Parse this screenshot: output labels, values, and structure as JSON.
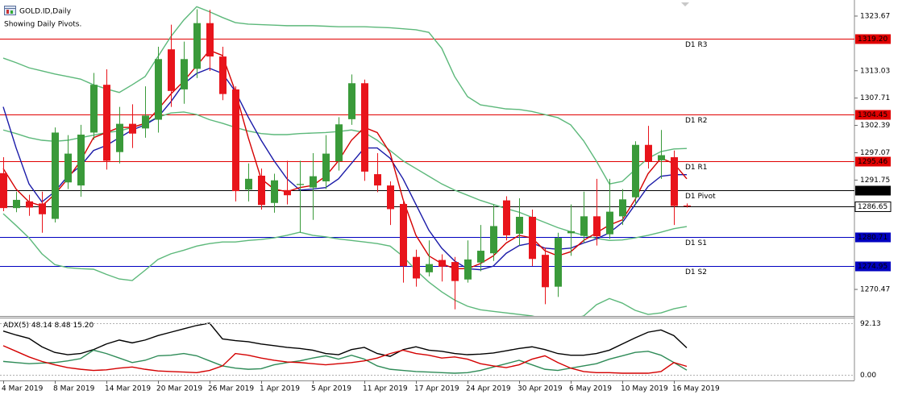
{
  "chart_data": {
    "type": "candlestick",
    "title": "GOLD.ID,Daily",
    "subtitle": "Showing Daily Pivots.",
    "categories": [
      "4 Mar 2019",
      null,
      null,
      null,
      "8 Mar 2019",
      null,
      null,
      null,
      "14 Mar 2019",
      null,
      null,
      null,
      "20 Mar 2019",
      null,
      null,
      null,
      "26 Mar 2019",
      null,
      null,
      null,
      "1 Apr 2019",
      null,
      null,
      null,
      "5 Apr 2019",
      null,
      null,
      null,
      "11 Apr 2019",
      null,
      null,
      null,
      "17 Apr 2019",
      null,
      null,
      null,
      "24 Apr 2019",
      null,
      null,
      null,
      "30 Apr 2019",
      null,
      null,
      null,
      "6 May 2019",
      null,
      null,
      null,
      "10 May 2019",
      null,
      null,
      null,
      "16 May 2019",
      null
    ],
    "open": [
      1293.1,
      1286.3,
      1287.6,
      1287.2,
      1284.2,
      1291.3,
      1290.7,
      1301.0,
      1310.3,
      1297.2,
      1302.7,
      1301.8,
      1303.5,
      1317.2,
      1309.4,
      1313.4,
      1322.3,
      1315.8,
      1309.4,
      1289.9,
      1292.6,
      1287.3,
      1289.8,
      1290.8,
      1290.3,
      1291.5,
      1295.4,
      1303.6,
      1310.6,
      1292.9,
      1290.7,
      1287.1,
      1276.8,
      1273.8,
      1276.2,
      1275.8,
      1272.4,
      1275.7,
      1277.5,
      1287.8,
      1281.3,
      1284.6,
      1277.2,
      1271.0,
      1281.4,
      1280.9,
      1284.7,
      1281.2,
      1284.7,
      1288.4,
      1298.6,
      1295.6,
      1296.2,
      1286.8
    ],
    "high": [
      1296.2,
      1289.5,
      1288.9,
      1289.5,
      1302.0,
      1300.5,
      1302.5,
      1312.6,
      1313.3,
      1306.0,
      1306.5,
      1310.0,
      1317.7,
      1322.0,
      1318.7,
      1325.0,
      1324.9,
      1317.7,
      1310.0,
      1295.0,
      1294.0,
      1293.0,
      1295.5,
      1295.5,
      1297.0,
      1300.5,
      1304.0,
      1312.3,
      1311.3,
      1297.0,
      1291.5,
      1288.0,
      1278.2,
      1280.0,
      1277.3,
      1276.8,
      1280.0,
      1283.0,
      1287.0,
      1288.6,
      1288.2,
      1286.0,
      1278.6,
      1281.5,
      1287.0,
      1289.5,
      1292.0,
      1292.0,
      1290.0,
      1299.3,
      1302.3,
      1301.5,
      1297.5,
      1287.2
    ],
    "low": [
      1285.7,
      1285.5,
      1284.8,
      1281.5,
      1283.5,
      1290.0,
      1288.5,
      1299.6,
      1293.8,
      1295.0,
      1298.0,
      1300.0,
      1301.0,
      1306.0,
      1306.6,
      1311.6,
      1313.0,
      1307.3,
      1287.6,
      1287.6,
      1286.0,
      1285.4,
      1287.0,
      1281.5,
      1284.0,
      1290.0,
      1293.6,
      1302.5,
      1291.6,
      1289.4,
      1283.0,
      1271.8,
      1271.0,
      1273.0,
      1272.0,
      1266.6,
      1271.8,
      1274.0,
      1276.0,
      1280.0,
      1279.0,
      1275.0,
      1267.6,
      1269.0,
      1277.0,
      1279.5,
      1279.0,
      1280.3,
      1283.0,
      1286.9,
      1294.0,
      1292.0,
      1283.0,
      1286.4
    ],
    "close": [
      1286.3,
      1287.9,
      1286.4,
      1285.1,
      1301.0,
      1296.9,
      1300.6,
      1310.3,
      1295.5,
      1302.7,
      1300.8,
      1304.3,
      1315.3,
      1309.1,
      1315.3,
      1322.3,
      1315.8,
      1308.5,
      1289.6,
      1292.0,
      1286.9,
      1291.7,
      1288.8,
      1291.0,
      1292.5,
      1296.9,
      1302.6,
      1310.6,
      1293.4,
      1290.7,
      1286.1,
      1275.0,
      1272.6,
      1275.4,
      1274.9,
      1272.1,
      1276.3,
      1278.0,
      1282.8,
      1281.0,
      1284.6,
      1276.4,
      1270.9,
      1280.5,
      1281.8,
      1284.7,
      1280.8,
      1285.6,
      1288.0,
      1298.6,
      1295.4,
      1296.6,
      1286.7,
      1286.65
    ],
    "up_color": "#3a9a3a",
    "down_color": "#e8141b",
    "overlays": [
      {
        "color": "#5cb87a",
        "values": [
          1315.5,
          1314.6,
          1313.6,
          1313.0,
          1312.4,
          1311.9,
          1311.4,
          1310.3,
          1309.5,
          1308.8,
          1310.3,
          1311.9,
          1315.8,
          1319.7,
          1322.9,
          1325.5,
          1324.5,
          1323.4,
          1322.4,
          1322.1,
          1322.0,
          1321.9,
          1321.8,
          1321.8,
          1321.8,
          1321.7,
          1321.6,
          1321.6,
          1321.6,
          1321.5,
          1321.4,
          1321.2,
          1321.0,
          1320.5,
          1317.4,
          1311.9,
          1308.0,
          1306.4,
          1306.0,
          1305.6,
          1305.5,
          1305.1,
          1304.5,
          1303.9,
          1302.5,
          1299.4,
          1295.4,
          1291.0,
          1291.5,
          1293.8,
          1296.0,
          1297.3,
          1297.8,
          1297.9
        ]
      },
      {
        "color": "#5cb87a",
        "values": [
          1301.5,
          1300.8,
          1300.0,
          1299.5,
          1299.3,
          1299.5,
          1300.0,
          1300.5,
          1301.0,
          1301.3,
          1302.0,
          1302.8,
          1304.0,
          1304.8,
          1305.0,
          1304.5,
          1303.5,
          1302.8,
          1302.0,
          1301.3,
          1300.8,
          1300.6,
          1300.6,
          1300.8,
          1300.9,
          1301.0,
          1301.2,
          1301.5,
          1301.0,
          1299.5,
          1297.5,
          1295.5,
          1294.0,
          1292.5,
          1291.0,
          1289.8,
          1288.8,
          1287.8,
          1287.0,
          1286.2,
          1285.5,
          1284.5,
          1283.5,
          1282.5,
          1281.7,
          1281.0,
          1280.4,
          1280.0,
          1280.1,
          1280.5,
          1281.0,
          1281.6,
          1282.3,
          1282.7
        ]
      },
      {
        "color": "#5cb87a",
        "values": [
          1285.2,
          1282.9,
          1280.5,
          1277.4,
          1275.3,
          1274.7,
          1274.5,
          1274.4,
          1273.4,
          1272.5,
          1272.2,
          1274.2,
          1276.3,
          1277.4,
          1278.1,
          1278.9,
          1279.4,
          1279.7,
          1279.7,
          1280.0,
          1280.2,
          1280.5,
          1281.0,
          1281.6,
          1281.0,
          1280.7,
          1280.3,
          1280.0,
          1279.7,
          1279.4,
          1278.9,
          1276.9,
          1274.2,
          1271.9,
          1270.0,
          1268.4,
          1267.2,
          1266.5,
          1266.2,
          1265.9,
          1265.6,
          1265.3,
          1264.7,
          1264.3,
          1264.7,
          1265.3,
          1267.5,
          1268.7,
          1267.8,
          1266.4,
          1265.6,
          1265.9,
          1266.7,
          1267.2
        ]
      },
      {
        "color": "#1a1aa8",
        "values": [
          1306.0,
          1298.0,
          1291.0,
          1287.5,
          1289.5,
          1292.5,
          1294.5,
          1297.5,
          1298.5,
          1300.0,
          1301.5,
          1302.5,
          1304.0,
          1307.0,
          1310.5,
          1312.5,
          1313.5,
          1312.5,
          1309.0,
          1304.0,
          1299.5,
          1295.5,
          1292.0,
          1289.8,
          1290.0,
          1290.3,
          1292.0,
          1295.0,
          1298.0,
          1298.0,
          1296.0,
          1292.0,
          1287.0,
          1282.0,
          1278.5,
          1276.0,
          1274.5,
          1274.3,
          1275.0,
          1277.5,
          1279.0,
          1279.5,
          1278.5,
          1278.3,
          1278.5,
          1279.5,
          1280.3,
          1281.5,
          1283.5,
          1287.0,
          1290.5,
          1292.5,
          1292.8,
          1292.8
        ]
      },
      {
        "color": "#d40000",
        "values": [
          1294.0,
          1290.0,
          1287.5,
          1286.7,
          1289.0,
          1292.0,
          1295.5,
          1300.0,
          1301.0,
          1302.0,
          1302.0,
          1302.8,
          1305.5,
          1308.5,
          1311.0,
          1314.0,
          1317.0,
          1316.0,
          1309.0,
          1300.0,
          1292.0,
          1290.0,
          1289.5,
          1290.3,
          1290.7,
          1292.5,
          1295.5,
          1299.5,
          1302.0,
          1301.0,
          1297.0,
          1288.0,
          1281.0,
          1277.0,
          1275.5,
          1274.5,
          1274.5,
          1275.5,
          1277.0,
          1279.5,
          1281.0,
          1280.5,
          1278.0,
          1277.0,
          1277.8,
          1280.0,
          1281.5,
          1283.0,
          1284.0,
          1288.0,
          1293.0,
          1296.0,
          1295.0,
          1292.0
        ]
      }
    ],
    "pivots": [
      {
        "name": "D1 R3",
        "value": 1319.2,
        "label": "1319.20",
        "color": "#e00000"
      },
      {
        "name": "D1 R2",
        "value": 1304.45,
        "label": "1304.45",
        "color": "#e00000"
      },
      {
        "name": "D1 R1",
        "value": 1295.46,
        "label": "1295.46",
        "color": "#e00000"
      },
      {
        "name": "D1 Pivot",
        "value": 1289.7,
        "label": "1289.70",
        "color": "#000000"
      },
      {
        "name": "D1 S1",
        "value": 1280.71,
        "label": "1280.71",
        "color": "#0000c0"
      },
      {
        "name": "D1 S2",
        "value": 1274.95,
        "label": "1274.95",
        "color": "#0000c0"
      }
    ],
    "last_price": {
      "value": 1286.65,
      "label": "1286.65",
      "color": "#000000"
    },
    "ylim": [
      1265.3,
      1326.8
    ],
    "yticks": [
      1323.67,
      1313.03,
      1307.71,
      1302.39,
      1297.07,
      1291.75,
      1270.47
    ],
    "indicator": {
      "type": "line",
      "title": "ADX(5)",
      "ylim": [
        -9.9,
        102
      ],
      "yticks": [
        92.13,
        {
          "value": 0,
          "label": "0.00"
        }
      ],
      "series": [
        {
          "color": "#000000",
          "values": [
            78,
            71,
            65,
            50,
            40,
            36,
            38,
            45,
            55,
            62,
            57,
            62,
            70,
            76,
            82,
            88,
            92.13,
            64,
            61,
            59,
            55,
            52,
            49,
            47,
            44,
            38,
            36,
            45,
            49,
            38,
            33,
            45,
            50,
            44,
            42,
            38,
            36,
            37,
            39,
            43,
            47,
            50,
            45,
            38,
            35,
            35,
            38,
            44,
            55,
            66,
            76,
            80,
            70,
            48.14
          ]
        },
        {
          "color": "#2e8b57",
          "values": [
            24,
            22,
            20,
            21,
            22,
            25,
            29,
            44,
            38,
            30,
            22,
            26,
            34,
            35,
            38,
            34,
            25,
            16,
            12,
            10,
            11,
            18,
            22,
            25,
            30,
            34,
            28,
            35,
            28,
            16,
            10,
            8,
            6,
            5,
            4,
            3,
            4,
            8,
            14,
            20,
            26,
            18,
            10,
            8,
            12,
            16,
            20,
            28,
            34,
            40,
            42,
            35,
            22,
            8.48
          ]
        },
        {
          "color": "#d40000",
          "values": [
            52,
            42,
            32,
            24,
            18,
            13,
            10,
            8,
            9,
            12,
            14,
            10,
            7,
            6,
            5,
            4,
            8,
            16,
            38,
            35,
            30,
            26,
            23,
            22,
            20,
            18,
            20,
            22,
            25,
            30,
            38,
            44,
            38,
            35,
            30,
            32,
            28,
            20,
            16,
            13,
            18,
            28,
            34,
            22,
            12,
            6,
            4,
            4,
            3,
            3,
            3,
            6,
            22,
            15.2
          ],
          "value_labels": [
            null,
            null,
            null,
            null,
            null,
            null,
            null,
            null,
            null,
            null,
            null,
            null,
            null,
            null,
            null,
            null,
            null,
            null,
            null,
            null,
            null,
            null,
            null,
            null,
            null,
            null,
            null,
            null,
            null,
            null,
            null,
            null,
            null,
            null,
            null,
            null,
            null,
            null,
            null,
            null,
            null,
            null,
            null,
            null,
            null,
            null,
            null,
            null,
            null,
            null,
            null,
            null,
            null,
            "15.20"
          ]
        }
      ]
    }
  }
}
